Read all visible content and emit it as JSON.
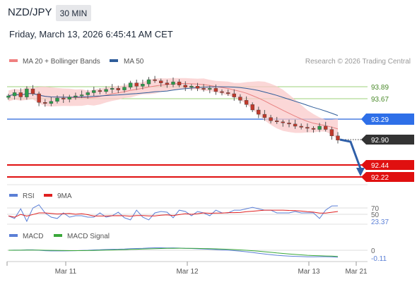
{
  "header": {
    "symbol": "NZD/JPY",
    "timeframe": "30 MIN",
    "timestamp": "Friday, March 13, 2026 6:45:41 AM CET"
  },
  "price_panel": {
    "legend": [
      {
        "label": "MA 20 + Bollinger Bands",
        "color": "#f08080"
      },
      {
        "label": "MA 50",
        "color": "#2f5d9a"
      }
    ],
    "source": "Research © 2026 Trading Central"
  },
  "rsi_panel": {
    "legend": [
      {
        "label": "RSI",
        "color": "#5b7fd6"
      },
      {
        "label": "9MA",
        "color": "#e02020"
      }
    ]
  },
  "macd_panel": {
    "legend": [
      {
        "label": "MACD",
        "color": "#5b7fd6"
      },
      {
        "label": "MACD Signal",
        "color": "#3aa83a"
      }
    ]
  },
  "chart_data": {
    "type": "line",
    "title": "NZD/JPY",
    "x_axis": {
      "ticks": [
        "Mar 11",
        "Mar 12",
        "Mar 13",
        "Mar 21"
      ]
    },
    "price": {
      "current": 92.9,
      "resistance_levels": [
        93.89,
        93.67
      ],
      "pivot": 93.29,
      "support_levels": [
        92.44,
        92.22
      ],
      "labels": [
        "93.89",
        "93.67",
        "93.29",
        "92.90",
        "92.44",
        "92.22"
      ],
      "forecast_target": 92.22,
      "approx_closes": [
        93.72,
        93.78,
        93.7,
        93.85,
        93.76,
        93.6,
        93.58,
        93.62,
        93.68,
        93.66,
        93.7,
        93.72,
        93.74,
        93.78,
        93.82,
        93.8,
        93.84,
        93.86,
        93.83,
        93.88,
        93.96,
        93.9,
        93.94,
        94.02,
        94.0,
        93.96,
        93.93,
        93.98,
        93.92,
        93.88,
        93.9,
        93.86,
        93.84,
        93.86,
        93.8,
        93.78,
        93.76,
        93.7,
        93.64,
        93.56,
        93.46,
        93.38,
        93.32,
        93.26,
        93.24,
        93.22,
        93.2,
        93.16,
        93.14,
        93.12,
        93.1,
        93.16,
        93.1,
        92.98,
        92.9
      ]
    },
    "rsi": {
      "levels": [
        70,
        50
      ],
      "last": 23.37,
      "tick_labels": [
        "70",
        "50",
        "23.37"
      ]
    },
    "macd": {
      "zero": 0,
      "last": -0.11,
      "tick_labels": [
        "0",
        "-0.11"
      ]
    }
  }
}
